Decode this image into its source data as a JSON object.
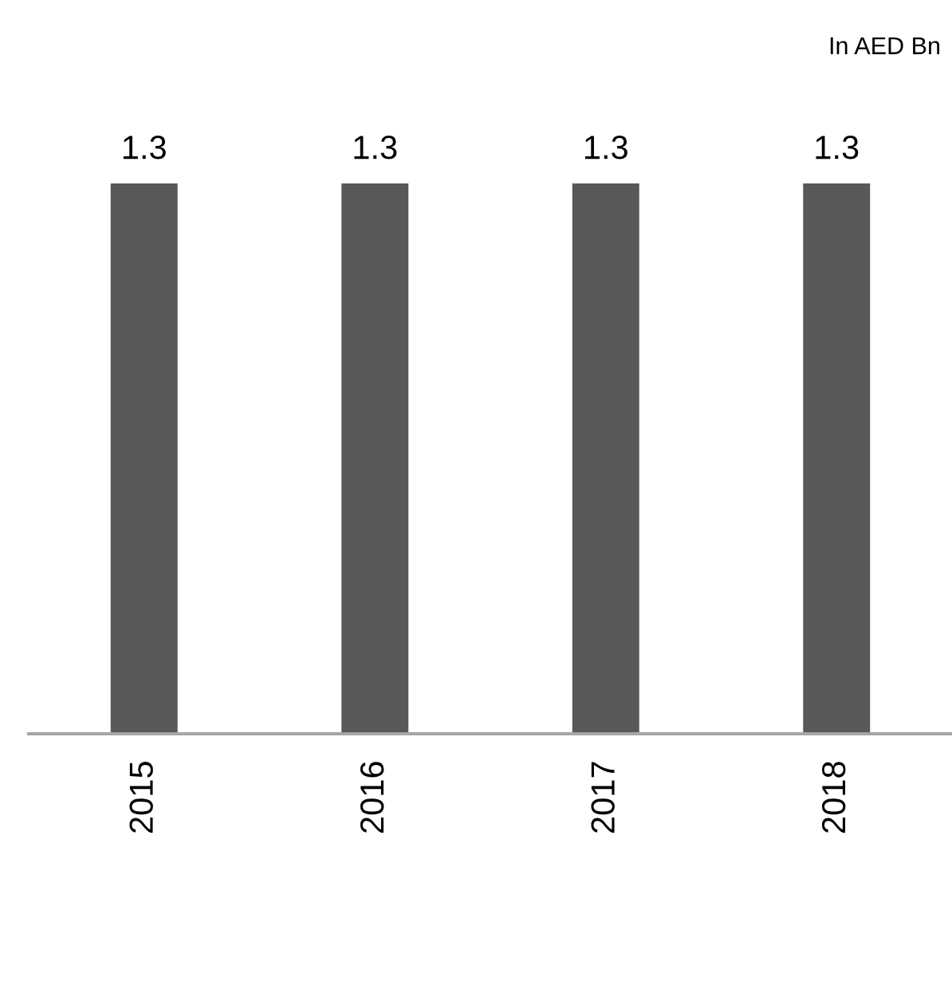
{
  "chart_data": {
    "type": "bar",
    "annotations": [
      "In AED Bn"
    ],
    "categories": [
      "2015",
      "2016",
      "2017",
      "2018"
    ],
    "values": [
      1.3,
      1.3,
      1.3,
      1.3
    ],
    "color": "#58575a",
    "data_labels": true
  }
}
